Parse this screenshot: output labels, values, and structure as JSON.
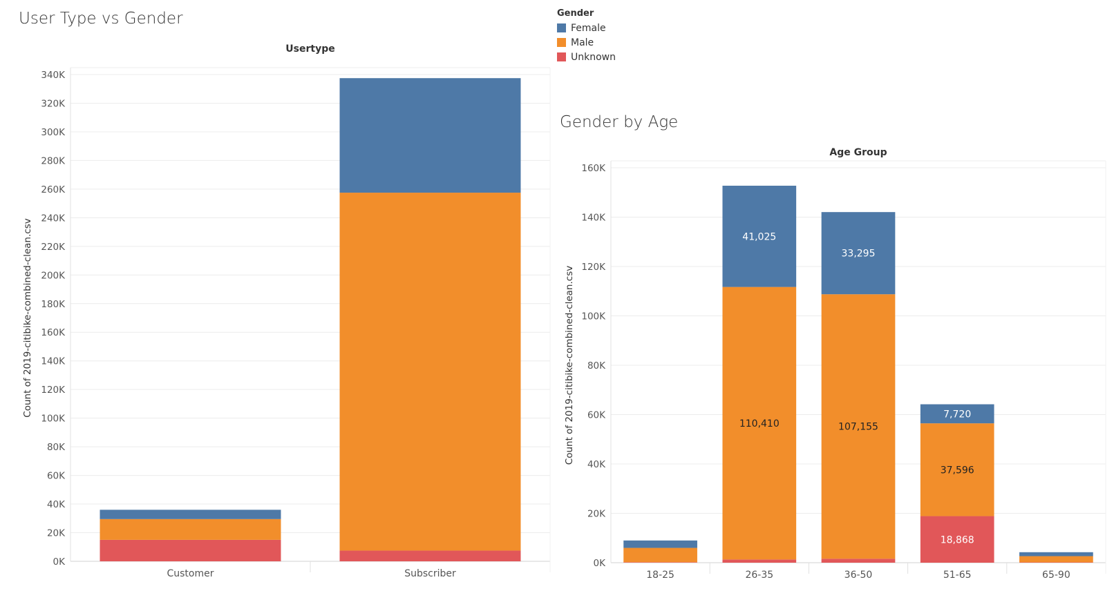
{
  "colors": {
    "Female": "#4e79a7",
    "Male": "#f28e2b",
    "Unknown": "#e15759"
  },
  "legend": {
    "title": "Gender",
    "items": [
      {
        "label": "Female",
        "color": "#4e79a7"
      },
      {
        "label": "Male",
        "color": "#f28e2b"
      },
      {
        "label": "Unknown",
        "color": "#e15759"
      }
    ]
  },
  "chart_data": [
    {
      "type": "bar",
      "stacked": true,
      "title": "User Type vs Gender",
      "xlabel": "Usertype",
      "ylabel": "Count of 2019-citibike-combined-clean.csv",
      "categories": [
        "Customer",
        "Subscriber"
      ],
      "series": [
        {
          "name": "Unknown",
          "values": [
            15000,
            7500
          ]
        },
        {
          "name": "Male",
          "values": [
            14500,
            250000
          ]
        },
        {
          "name": "Female",
          "values": [
            6500,
            80000
          ]
        }
      ],
      "ylim": [
        0,
        340000
      ],
      "yticks": [
        0,
        20000,
        40000,
        60000,
        80000,
        100000,
        120000,
        140000,
        160000,
        180000,
        200000,
        220000,
        240000,
        260000,
        280000,
        300000,
        320000,
        340000
      ],
      "ytick_labels": [
        "0K",
        "20K",
        "40K",
        "60K",
        "80K",
        "100K",
        "120K",
        "140K",
        "160K",
        "180K",
        "200K",
        "220K",
        "240K",
        "260K",
        "280K",
        "300K",
        "320K",
        "340K"
      ],
      "grid": true
    },
    {
      "type": "bar",
      "stacked": true,
      "title": "Gender by Age",
      "xlabel": "Age Group",
      "ylabel": "Count of 2019-citibike-combined-clean.csv",
      "categories": [
        "18-25",
        "26-35",
        "36-50",
        "51-65",
        "65-90"
      ],
      "series": [
        {
          "name": "Unknown",
          "values": [
            200,
            1300,
            1600,
            18868,
            150
          ]
        },
        {
          "name": "Male",
          "values": [
            5800,
            110410,
            107155,
            37596,
            2500
          ]
        },
        {
          "name": "Female",
          "values": [
            3000,
            41025,
            33295,
            7720,
            1600
          ]
        }
      ],
      "data_labels": {
        "Female": [
          "",
          "41,025",
          "33,295",
          "7,720",
          ""
        ],
        "Male": [
          "",
          "110,410",
          "107,155",
          "37,596",
          ""
        ],
        "Unknown": [
          "",
          "",
          "",
          "18,868",
          ""
        ]
      },
      "ylim": [
        0,
        160000
      ],
      "yticks": [
        0,
        20000,
        40000,
        60000,
        80000,
        100000,
        120000,
        140000,
        160000
      ],
      "ytick_labels": [
        "0K",
        "20K",
        "40K",
        "60K",
        "80K",
        "100K",
        "120K",
        "140K",
        "160K"
      ],
      "grid": true
    }
  ]
}
